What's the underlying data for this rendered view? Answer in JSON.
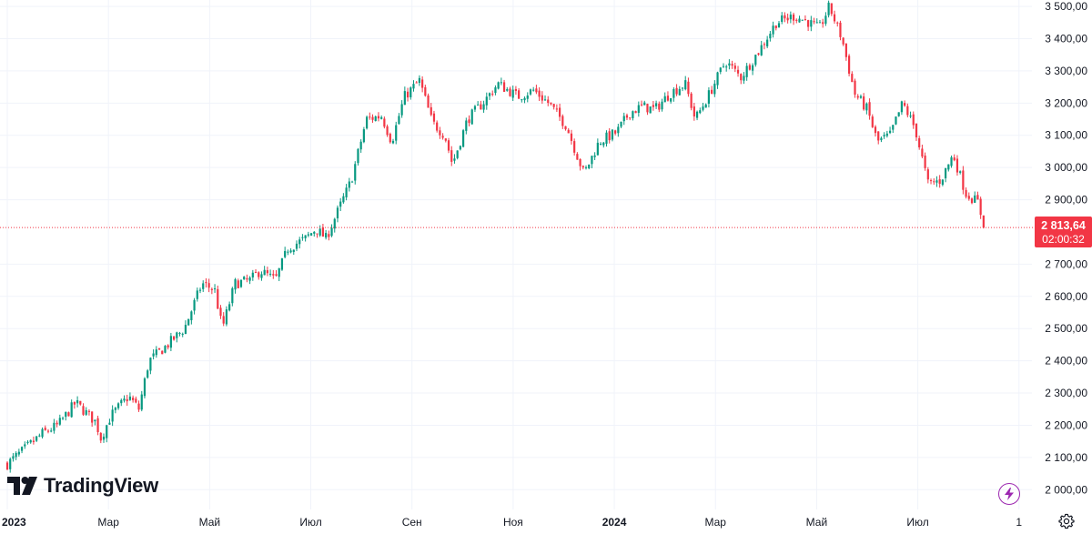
{
  "brand": {
    "name": "TradingView"
  },
  "badge": {
    "price": "2 813,64",
    "countdown": "02:00:32"
  },
  "icons": {
    "bolt": "lightning-bolt-icon",
    "settings": "settings-gear-icon",
    "logo": "tradingview-logo-icon"
  },
  "colors": {
    "up": "#089981",
    "down": "#f23645",
    "grid": "#f0f3fa",
    "text": "#131722",
    "bolt": "#9c27b0"
  },
  "chart_data": {
    "type": "candlestick",
    "title": "",
    "last_price": 2813.64,
    "ylim": [
      1950,
      3520
    ],
    "y_ticks": [
      {
        "value": 3500,
        "label": "3 500,00"
      },
      {
        "value": 3400,
        "label": "3 400,00"
      },
      {
        "value": 3300,
        "label": "3 300,00"
      },
      {
        "value": 3200,
        "label": "3 200,00"
      },
      {
        "value": 3100,
        "label": "3 100,00"
      },
      {
        "value": 3000,
        "label": "3 000,00"
      },
      {
        "value": 2900,
        "label": "2 900,00"
      },
      {
        "value": 2700,
        "label": "2 700,00"
      },
      {
        "value": 2600,
        "label": "2 600,00"
      },
      {
        "value": 2500,
        "label": "2 500,00"
      },
      {
        "value": 2400,
        "label": "2 400,00"
      },
      {
        "value": 2300,
        "label": "2 300,00"
      },
      {
        "value": 2200,
        "label": "2 200,00"
      },
      {
        "value": 2100,
        "label": "2 100,00"
      },
      {
        "value": 2000,
        "label": "2 000,00"
      }
    ],
    "x_ticks": [
      {
        "month": 0,
        "label": "2023",
        "major": true
      },
      {
        "month": 2,
        "label": "Мар",
        "major": false
      },
      {
        "month": 4,
        "label": "Май",
        "major": false
      },
      {
        "month": 6,
        "label": "Июл",
        "major": false
      },
      {
        "month": 8,
        "label": "Сен",
        "major": false
      },
      {
        "month": 10,
        "label": "Ноя",
        "major": false
      },
      {
        "month": 12,
        "label": "2024",
        "major": true
      },
      {
        "month": 14,
        "label": "Мар",
        "major": false
      },
      {
        "month": 16,
        "label": "Май",
        "major": false
      },
      {
        "month": 18,
        "label": "Июл",
        "major": false
      },
      {
        "month": 20,
        "label": "1",
        "major": false
      }
    ],
    "xlim_months": [
      0,
      20.4
    ],
    "path_anchors": [
      [
        0.0,
        2080
      ],
      [
        0.3,
        2120
      ],
      [
        0.7,
        2175
      ],
      [
        1.0,
        2200
      ],
      [
        1.35,
        2270
      ],
      [
        1.55,
        2240
      ],
      [
        1.75,
        2210
      ],
      [
        1.85,
        2160
      ],
      [
        2.05,
        2230
      ],
      [
        2.4,
        2290
      ],
      [
        2.6,
        2250
      ],
      [
        2.8,
        2400
      ],
      [
        3.1,
        2440
      ],
      [
        3.5,
        2500
      ],
      [
        3.85,
        2640
      ],
      [
        4.1,
        2620
      ],
      [
        4.25,
        2500
      ],
      [
        4.5,
        2640
      ],
      [
        4.8,
        2650
      ],
      [
        5.0,
        2680
      ],
      [
        5.3,
        2650
      ],
      [
        5.55,
        2750
      ],
      [
        5.9,
        2780
      ],
      [
        6.1,
        2810
      ],
      [
        6.3,
        2780
      ],
      [
        6.55,
        2870
      ],
      [
        6.8,
        2960
      ],
      [
        7.1,
        3150
      ],
      [
        7.4,
        3160
      ],
      [
        7.6,
        3080
      ],
      [
        7.85,
        3220
      ],
      [
        8.15,
        3270
      ],
      [
        8.4,
        3140
      ],
      [
        8.65,
        3100
      ],
      [
        8.8,
        3010
      ],
      [
        9.1,
        3150
      ],
      [
        9.4,
        3200
      ],
      [
        9.7,
        3260
      ],
      [
        10.1,
        3220
      ],
      [
        10.4,
        3240
      ],
      [
        10.7,
        3200
      ],
      [
        11.05,
        3130
      ],
      [
        11.4,
        2980
      ],
      [
        11.7,
        3080
      ],
      [
        12.05,
        3110
      ],
      [
        12.3,
        3170
      ],
      [
        12.55,
        3190
      ],
      [
        12.8,
        3180
      ],
      [
        13.1,
        3230
      ],
      [
        13.4,
        3260
      ],
      [
        13.6,
        3150
      ],
      [
        13.85,
        3220
      ],
      [
        14.2,
        3330
      ],
      [
        14.5,
        3280
      ],
      [
        14.85,
        3360
      ],
      [
        15.2,
        3450
      ],
      [
        15.55,
        3470
      ],
      [
        15.8,
        3455
      ],
      [
        16.05,
        3430
      ],
      [
        16.25,
        3500
      ],
      [
        16.5,
        3400
      ],
      [
        16.75,
        3230
      ],
      [
        17.0,
        3180
      ],
      [
        17.2,
        3080
      ],
      [
        17.45,
        3100
      ],
      [
        17.7,
        3200
      ],
      [
        17.95,
        3120
      ],
      [
        18.2,
        2950
      ],
      [
        18.45,
        2960
      ],
      [
        18.7,
        3040
      ],
      [
        18.95,
        2920
      ],
      [
        19.2,
        2890
      ],
      [
        19.3,
        2815
      ]
    ]
  }
}
